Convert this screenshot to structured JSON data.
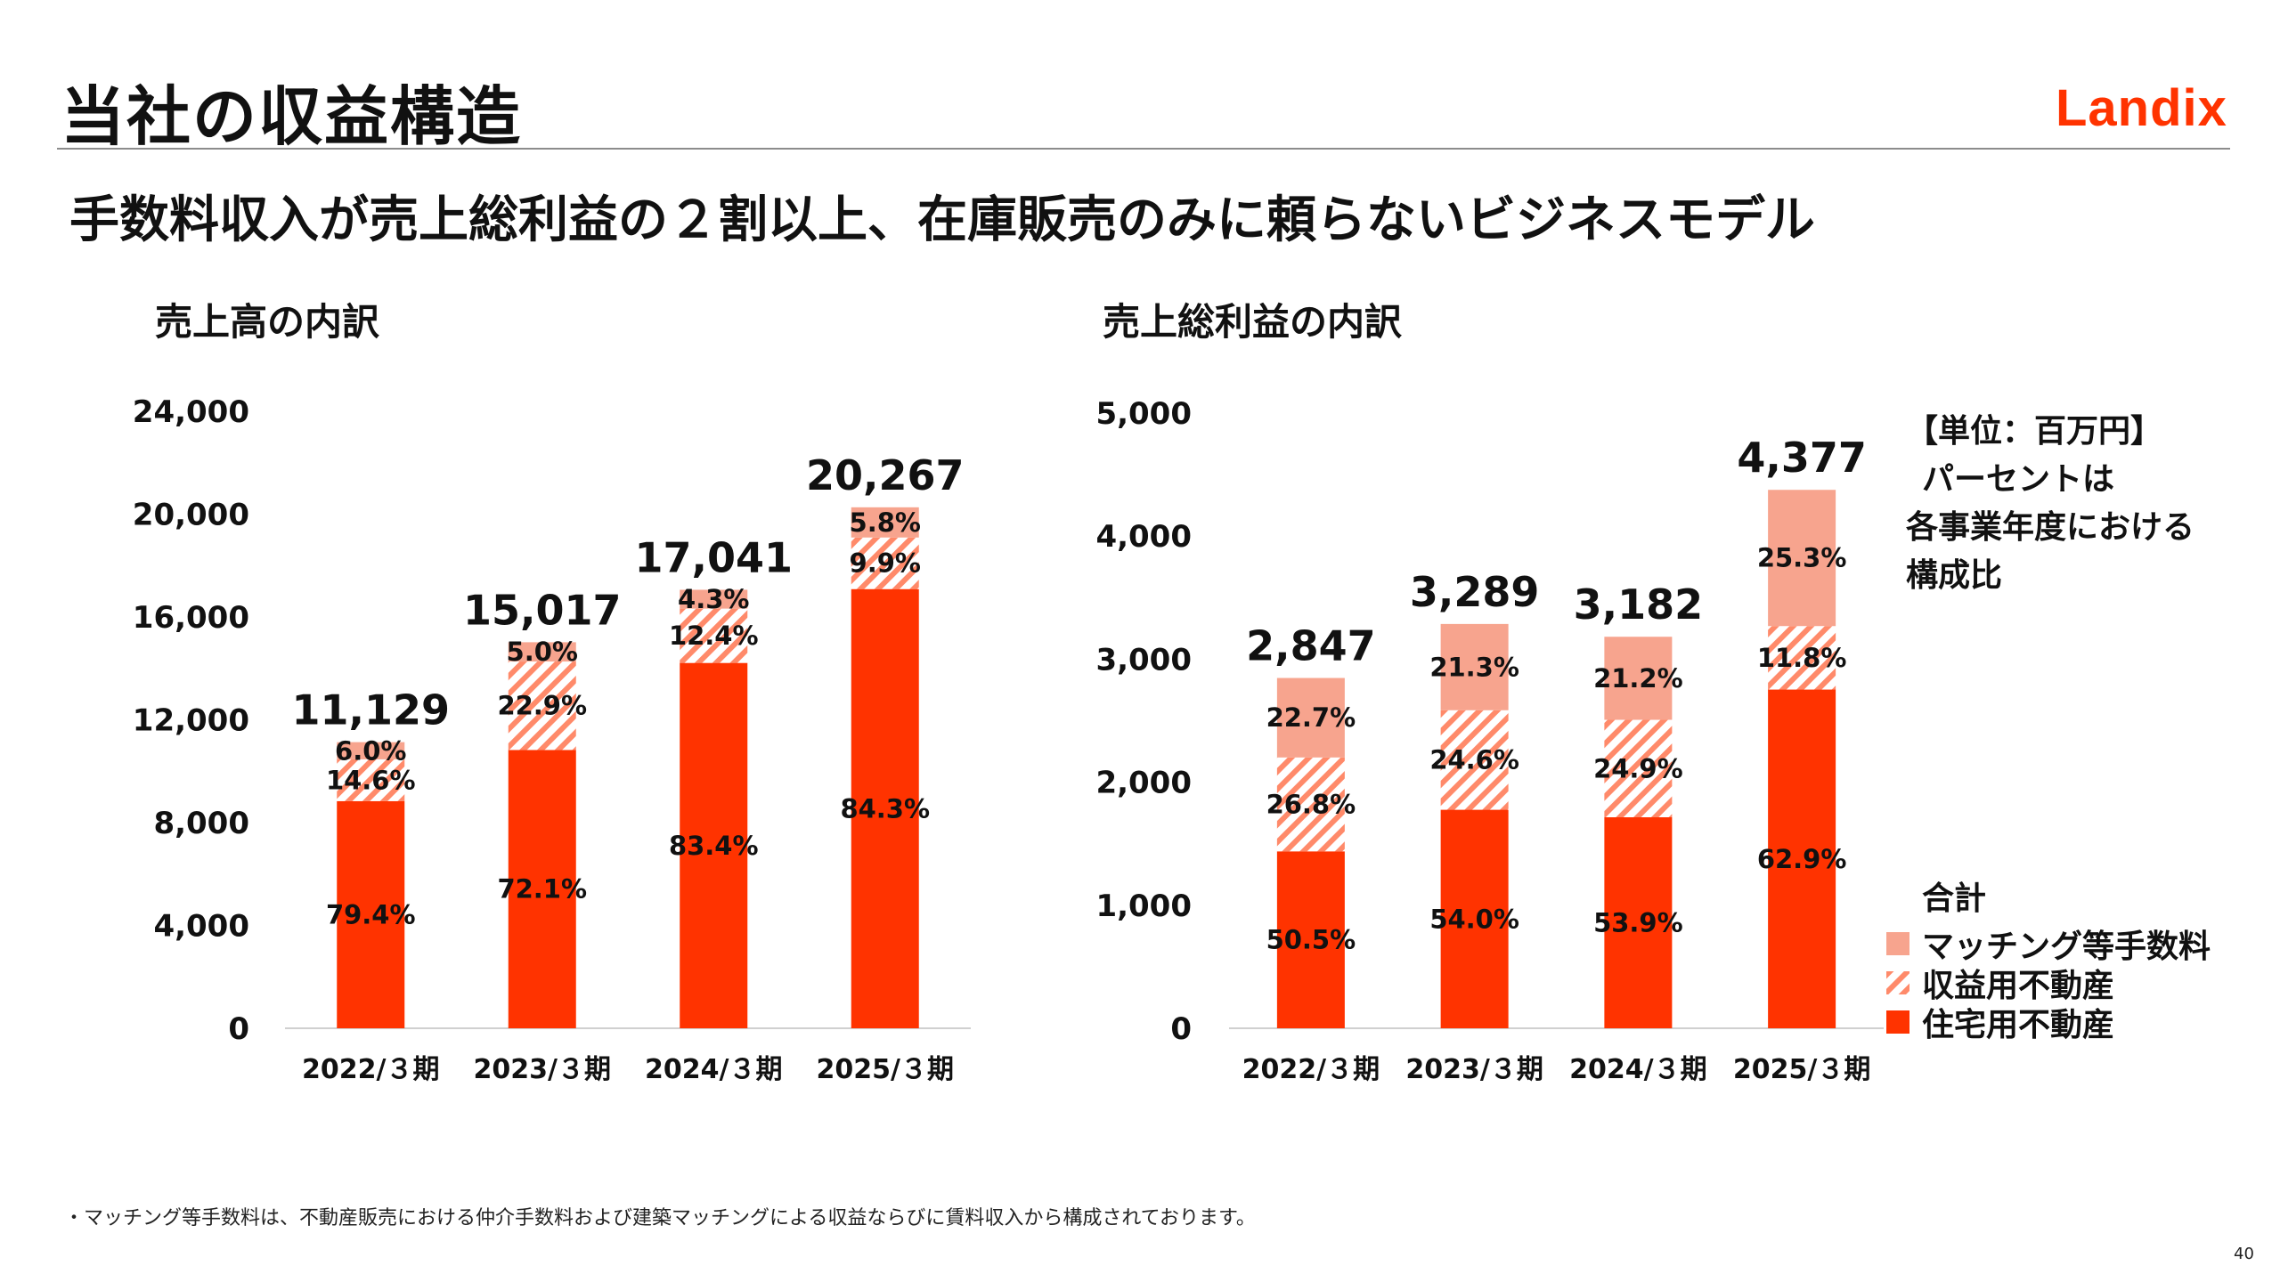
{
  "header": {
    "title": "当社の収益構造",
    "logo_text": "Landix",
    "headline": "手数料収入が売上総利益の２割以上、在庫販売のみに頼らないビジネスモデル"
  },
  "colors": {
    "residential": "#ff3300",
    "income": "#ff7a59",
    "matching": "#f7a48e",
    "brand": "#ff3300"
  },
  "unit_note": [
    "【単位：百万円】",
    "パーセントは",
    "各事業年度における",
    "構成比"
  ],
  "legend": {
    "title": "合計",
    "items": [
      "マッチング等手数料",
      "収益用不動産",
      "住宅用不動産"
    ]
  },
  "footnote": "・マッチング等手数料は、不動産販売における仲介手数料および建築マッチングによる収益ならびに賃料収入から構成されております。",
  "page_number": "40",
  "chart_data": [
    {
      "type": "bar",
      "stacked": true,
      "title": "売上高の内訳",
      "categories": [
        "2022/３期",
        "2023/３期",
        "2024/３期",
        "2025/３期"
      ],
      "totals": [
        "11,129",
        "15,017",
        "17,041",
        "20,267"
      ],
      "series": [
        {
          "name": "住宅用不動産",
          "values": [
            8837,
            10827,
            14212,
            17085
          ],
          "labels": [
            "79.4%",
            "72.1%",
            "83.4%",
            "84.3%"
          ]
        },
        {
          "name": "収益用不動産",
          "values": [
            1625,
            3439,
            2113,
            2006
          ],
          "labels": [
            "14.6%",
            "22.9%",
            "12.4%",
            "9.9%"
          ]
        },
        {
          "name": "マッチング等手数料",
          "values": [
            668,
            751,
            733,
            1175
          ],
          "labels": [
            "6.0%",
            "5.0%",
            "4.3%",
            "5.8%"
          ]
        }
      ],
      "y_ticks": [
        "0",
        "4,000",
        "8,000",
        "12,000",
        "16,000",
        "20,000",
        "24,000"
      ],
      "ylim": [
        0,
        24000
      ]
    },
    {
      "type": "bar",
      "stacked": true,
      "title": "売上総利益の内訳",
      "categories": [
        "2022/３期",
        "2023/３期",
        "2024/３期",
        "2025/３期"
      ],
      "totals": [
        "2,847",
        "3,289",
        "3,182",
        "4,377"
      ],
      "series": [
        {
          "name": "住宅用不動産",
          "values": [
            1438,
            1776,
            1715,
            2753
          ],
          "labels": [
            "50.5%",
            "54.0%",
            "53.9%",
            "62.9%"
          ]
        },
        {
          "name": "収益用不動産",
          "values": [
            763,
            809,
            792,
            516
          ],
          "labels": [
            "26.8%",
            "24.6%",
            "24.9%",
            "11.8%"
          ]
        },
        {
          "name": "マッチング等手数料",
          "values": [
            646,
            701,
            675,
            1107
          ],
          "labels": [
            "22.7%",
            "21.3%",
            "21.2%",
            "25.3%"
          ]
        }
      ],
      "y_ticks": [
        "0",
        "1,000",
        "2,000",
        "3,000",
        "4,000",
        "5,000"
      ],
      "ylim": [
        0,
        5000
      ]
    }
  ]
}
